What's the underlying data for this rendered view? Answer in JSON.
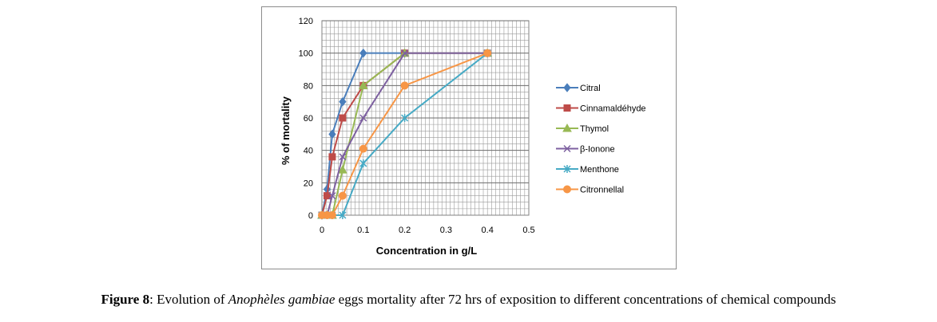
{
  "chart_data": {
    "type": "line",
    "xlabel": "Concentration in g/L",
    "ylabel": "% of mortality",
    "xlim": [
      0,
      0.5
    ],
    "ylim": [
      0,
      120
    ],
    "xticks": [
      "0",
      "0.1",
      "0.2",
      "0.3",
      "0.4",
      "0.5"
    ],
    "yticks": [
      "0",
      "20",
      "40",
      "60",
      "80",
      "100",
      "120"
    ],
    "grid": true,
    "legend_position": "right",
    "series": [
      {
        "name": "Citral",
        "color": "#4a7ebb",
        "marker": "diamond",
        "x": [
          0,
          0.0125,
          0.025,
          0.05,
          0.1,
          0.2,
          0.4
        ],
        "y": [
          0,
          16,
          50,
          70,
          100,
          100,
          100
        ]
      },
      {
        "name": "Cinnamaldéhyde",
        "color": "#be4b48",
        "marker": "square",
        "x": [
          0,
          0.0125,
          0.025,
          0.05,
          0.1,
          0.2,
          0.4
        ],
        "y": [
          0,
          12,
          36,
          60,
          80,
          100,
          100
        ]
      },
      {
        "name": "Thymol",
        "color": "#98b954",
        "marker": "triangle",
        "x": [
          0,
          0.0125,
          0.025,
          0.05,
          0.1,
          0.2,
          0.4
        ],
        "y": [
          0,
          0,
          0,
          28,
          80,
          100,
          100
        ]
      },
      {
        "name": "β-Ionone",
        "color": "#7d60a0",
        "marker": "x",
        "x": [
          0,
          0.0125,
          0.025,
          0.05,
          0.1,
          0.2,
          0.4
        ],
        "y": [
          0,
          0,
          12,
          36,
          60,
          100,
          100
        ]
      },
      {
        "name": "Menthone",
        "color": "#46aac5",
        "marker": "star",
        "x": [
          0,
          0.0125,
          0.025,
          0.05,
          0.1,
          0.2,
          0.4
        ],
        "y": [
          0,
          0,
          0,
          0,
          32,
          60,
          100
        ]
      },
      {
        "name": "Citronnellal",
        "color": "#f79646",
        "marker": "circle",
        "x": [
          0,
          0.0125,
          0.025,
          0.05,
          0.1,
          0.2,
          0.4
        ],
        "y": [
          0,
          0,
          0,
          12,
          41,
          80,
          100
        ]
      }
    ]
  },
  "caption": {
    "label": "Figure 8",
    "text_before": ": Evolution of ",
    "species": "Anophèles gambiae",
    "text_after": " eggs mortality after 72 hrs of exposition to different concentrations of chemical compounds"
  }
}
